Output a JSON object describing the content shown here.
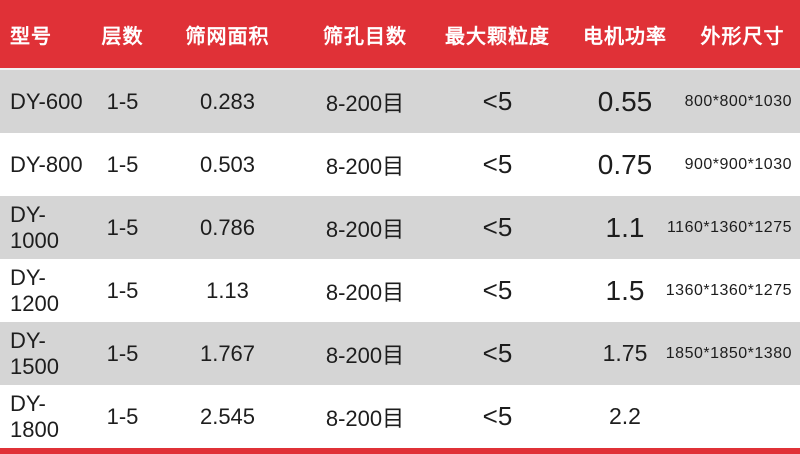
{
  "colors": {
    "header_bg": "#e03137",
    "header_text": "#ffffff",
    "row_gray": "#d5d5d5",
    "row_white": "#ffffff",
    "body_text": "#1d1d1d",
    "bottom_bar": "#e03137"
  },
  "chart_data": {
    "type": "table",
    "columns": [
      "型号",
      "层数",
      "筛网面积",
      "筛孔目数",
      "最大颗粒度",
      "电机功率",
      "外形尺寸"
    ],
    "rows": [
      [
        "DY-600",
        "1-5",
        "0.283",
        "8-200目",
        "<5",
        "0.55",
        "800*800*1030"
      ],
      [
        "DY-800",
        "1-5",
        "0.503",
        "8-200目",
        "<5",
        "0.75",
        "900*900*1030"
      ],
      [
        "DY-1000",
        "1-5",
        "0.786",
        "8-200目",
        "<5",
        "1.1",
        "1160*1360*1275"
      ],
      [
        "DY-1200",
        "1-5",
        "1.13",
        "8-200目",
        "<5",
        "1.5",
        "1360*1360*1275"
      ],
      [
        "DY-1500",
        "1-5",
        "1.767",
        "8-200目",
        "<5",
        "1.75",
        "1850*1850*1380"
      ],
      [
        "DY-1800",
        "1-5",
        "2.545",
        "8-200目",
        "<5",
        "2.2",
        ""
      ]
    ]
  }
}
